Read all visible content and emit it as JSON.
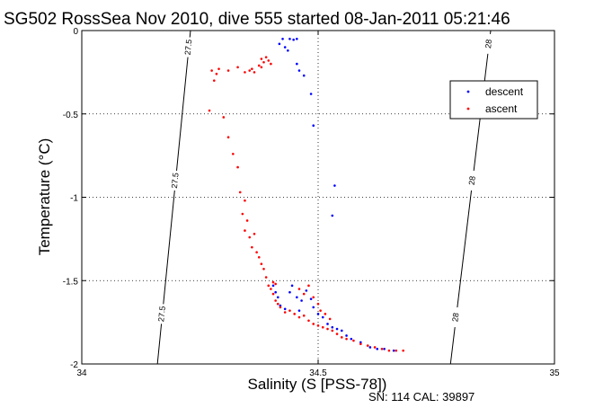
{
  "chart_data": {
    "type": "scatter",
    "title": "SG502 RossSea Nov 2010, dive 555 started 08-Jan-2011 05:21:46",
    "xlabel": "Salinity (S [PSS-78])",
    "ylabel": "Temperature (°C)",
    "footer": "SN: 114  CAL: 39897",
    "xlim": [
      34,
      35
    ],
    "ylim": [
      -2,
      0
    ],
    "xticks": [
      "34",
      "34.5",
      "35"
    ],
    "yticks": [
      "0",
      "-0.5",
      "-1",
      "-1.5",
      "-2"
    ],
    "xtick_values": [
      34,
      34.5,
      35
    ],
    "ytick_values": [
      0,
      -0.5,
      -1,
      -1.5,
      -2
    ],
    "grid": "dotted",
    "legend_position": "top-right",
    "series": [
      {
        "name": "descent",
        "color": "#0000ff",
        "points": [
          [
            34.425,
            -0.05
          ],
          [
            34.44,
            -0.05
          ],
          [
            34.448,
            -0.055
          ],
          [
            34.455,
            -0.05
          ],
          [
            34.418,
            -0.08
          ],
          [
            34.43,
            -0.1
          ],
          [
            34.436,
            -0.12
          ],
          [
            34.455,
            -0.2
          ],
          [
            34.46,
            -0.24
          ],
          [
            34.47,
            -0.27
          ],
          [
            34.485,
            -0.38
          ],
          [
            34.49,
            -0.57
          ],
          [
            34.535,
            -0.93
          ],
          [
            34.53,
            -1.11
          ],
          [
            34.405,
            -1.53
          ],
          [
            34.41,
            -1.57
          ],
          [
            34.415,
            -1.6
          ],
          [
            34.42,
            -1.65
          ],
          [
            34.43,
            -1.67
          ],
          [
            34.44,
            -1.57
          ],
          [
            34.445,
            -1.53
          ],
          [
            34.455,
            -1.6
          ],
          [
            34.46,
            -1.68
          ],
          [
            34.465,
            -1.62
          ],
          [
            34.475,
            -1.56
          ],
          [
            34.485,
            -1.61
          ],
          [
            34.49,
            -1.66
          ],
          [
            34.5,
            -1.7
          ],
          [
            34.51,
            -1.72
          ],
          [
            34.52,
            -1.76
          ],
          [
            34.53,
            -1.78
          ],
          [
            34.54,
            -1.79
          ],
          [
            34.55,
            -1.8
          ],
          [
            34.56,
            -1.83
          ],
          [
            34.57,
            -1.85
          ],
          [
            34.59,
            -1.87
          ],
          [
            34.61,
            -1.9
          ],
          [
            34.625,
            -1.91
          ],
          [
            34.64,
            -1.91
          ],
          [
            34.66,
            -1.92
          ]
        ]
      },
      {
        "name": "ascent",
        "color": "#ff0000",
        "points": [
          [
            34.275,
            -0.24
          ],
          [
            34.28,
            -0.3
          ],
          [
            34.285,
            -0.26
          ],
          [
            34.27,
            -0.48
          ],
          [
            34.29,
            -0.23
          ],
          [
            34.31,
            -0.24
          ],
          [
            34.33,
            -0.22
          ],
          [
            34.345,
            -0.25
          ],
          [
            34.36,
            -0.23
          ],
          [
            34.375,
            -0.21
          ],
          [
            34.385,
            -0.19
          ],
          [
            34.38,
            -0.17
          ],
          [
            34.39,
            -0.16
          ],
          [
            34.395,
            -0.18
          ],
          [
            34.4,
            -0.2
          ],
          [
            34.355,
            -0.24
          ],
          [
            34.365,
            -0.25
          ],
          [
            34.38,
            -0.22
          ],
          [
            34.3,
            -0.52
          ],
          [
            34.31,
            -0.64
          ],
          [
            34.32,
            -0.74
          ],
          [
            34.33,
            -0.82
          ],
          [
            34.335,
            -0.97
          ],
          [
            34.345,
            -1.02
          ],
          [
            34.34,
            -1.1
          ],
          [
            34.345,
            -1.2
          ],
          [
            34.35,
            -1.14
          ],
          [
            34.355,
            -1.24
          ],
          [
            34.36,
            -1.3
          ],
          [
            34.365,
            -1.22
          ],
          [
            34.37,
            -1.33
          ],
          [
            34.375,
            -1.36
          ],
          [
            34.38,
            -1.4
          ],
          [
            34.385,
            -1.43
          ],
          [
            34.39,
            -1.48
          ],
          [
            34.395,
            -1.53
          ],
          [
            34.4,
            -1.55
          ],
          [
            34.405,
            -1.58
          ],
          [
            34.41,
            -1.62
          ],
          [
            34.415,
            -1.64
          ],
          [
            34.42,
            -1.66
          ],
          [
            34.43,
            -1.69
          ],
          [
            34.44,
            -1.68
          ],
          [
            34.45,
            -1.7
          ],
          [
            34.46,
            -1.72
          ],
          [
            34.47,
            -1.71
          ],
          [
            34.48,
            -1.74
          ],
          [
            34.49,
            -1.76
          ],
          [
            34.5,
            -1.77
          ],
          [
            34.51,
            -1.78
          ],
          [
            34.52,
            -1.79
          ],
          [
            34.53,
            -1.8
          ],
          [
            34.54,
            -1.82
          ],
          [
            34.55,
            -1.84
          ],
          [
            34.56,
            -1.85
          ],
          [
            34.575,
            -1.86
          ],
          [
            34.59,
            -1.88
          ],
          [
            34.605,
            -1.89
          ],
          [
            34.62,
            -1.9
          ],
          [
            34.635,
            -1.91
          ],
          [
            34.65,
            -1.92
          ],
          [
            34.665,
            -1.92
          ],
          [
            34.68,
            -1.92
          ],
          [
            34.46,
            -1.55
          ],
          [
            34.47,
            -1.58
          ],
          [
            34.48,
            -1.53
          ],
          [
            34.49,
            -1.6
          ],
          [
            34.5,
            -1.64
          ],
          [
            34.505,
            -1.68
          ],
          [
            34.515,
            -1.7
          ],
          [
            34.525,
            -1.73
          ],
          [
            34.405,
            -1.51
          ],
          [
            34.41,
            -1.52
          ]
        ]
      }
    ],
    "contours": [
      {
        "label": "27.5",
        "points": [
          [
            34.23,
            0
          ],
          [
            34.16,
            -2
          ]
        ],
        "label_positions": [
          -0.1,
          -0.9,
          -1.7
        ]
      },
      {
        "label": "28",
        "points": [
          [
            34.865,
            0
          ],
          [
            34.78,
            -2
          ]
        ],
        "label_positions": [
          -0.08,
          -0.9,
          -1.72
        ]
      }
    ]
  }
}
